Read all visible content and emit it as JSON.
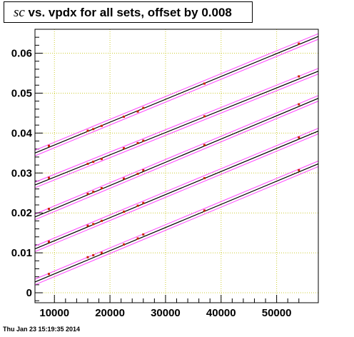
{
  "title": {
    "symbol": "sc",
    "text": " vs. vpdx for all sets, offset by 0.008"
  },
  "footer": {
    "timestamp": "Thu Jan 23 15:19:35 2014"
  },
  "colors": {
    "points": "#cc2200",
    "fit": "#000000",
    "band": "#ff44ff",
    "grid": "#cccc33",
    "frame": "#000000"
  },
  "chart_data": {
    "type": "scatter",
    "xlim": [
      6500,
      57500
    ],
    "ylim": [
      -0.0025,
      0.066
    ],
    "grid": true,
    "x_ticks": [
      10000,
      20000,
      30000,
      40000,
      50000
    ],
    "x_tick_labels": [
      "10000",
      "20000",
      "30000",
      "40000",
      "50000"
    ],
    "y_ticks": [
      0,
      0.01,
      0.02,
      0.03,
      0.04,
      0.05,
      0.06
    ],
    "y_tick_labels": [
      "0",
      "0.01",
      "0.02",
      "0.03",
      "0.04",
      "0.05",
      "0.06"
    ],
    "x": [
      9000,
      16000,
      17000,
      18500,
      22500,
      25000,
      26000,
      37000,
      54000
    ],
    "series": [
      {
        "values": [
          0.0047,
          0.0089,
          0.0094,
          0.01,
          0.0121,
          0.0136,
          0.0146,
          0.0206,
          0.0307
        ],
        "fit": [
          [
            6500,
            0.0027
          ],
          [
            57500,
            0.0323
          ]
        ]
      },
      {
        "values": [
          0.0128,
          0.0168,
          0.0172,
          0.018,
          0.0203,
          0.0218,
          0.0225,
          0.0287,
          0.0389
        ],
        "fit": [
          [
            6500,
            0.011
          ],
          [
            57500,
            0.0405
          ]
        ]
      },
      {
        "values": [
          0.021,
          0.0248,
          0.0253,
          0.0262,
          0.0286,
          0.0298,
          0.0307,
          0.037,
          0.0472
        ],
        "fit": [
          [
            6500,
            0.019
          ],
          [
            57500,
            0.0487
          ]
        ]
      },
      {
        "values": [
          0.0288,
          0.0323,
          0.0328,
          0.0335,
          0.0362,
          0.0375,
          0.0381,
          0.0442,
          0.0542
        ],
        "fit": [
          [
            6500,
            0.027
          ],
          [
            57500,
            0.0555
          ]
        ]
      },
      {
        "values": [
          0.0368,
          0.0406,
          0.041,
          0.0418,
          0.0441,
          0.0454,
          0.0463,
          0.0524,
          0.0624
        ],
        "fit": [
          [
            6500,
            0.035
          ],
          [
            57500,
            0.0642
          ]
        ]
      }
    ]
  }
}
